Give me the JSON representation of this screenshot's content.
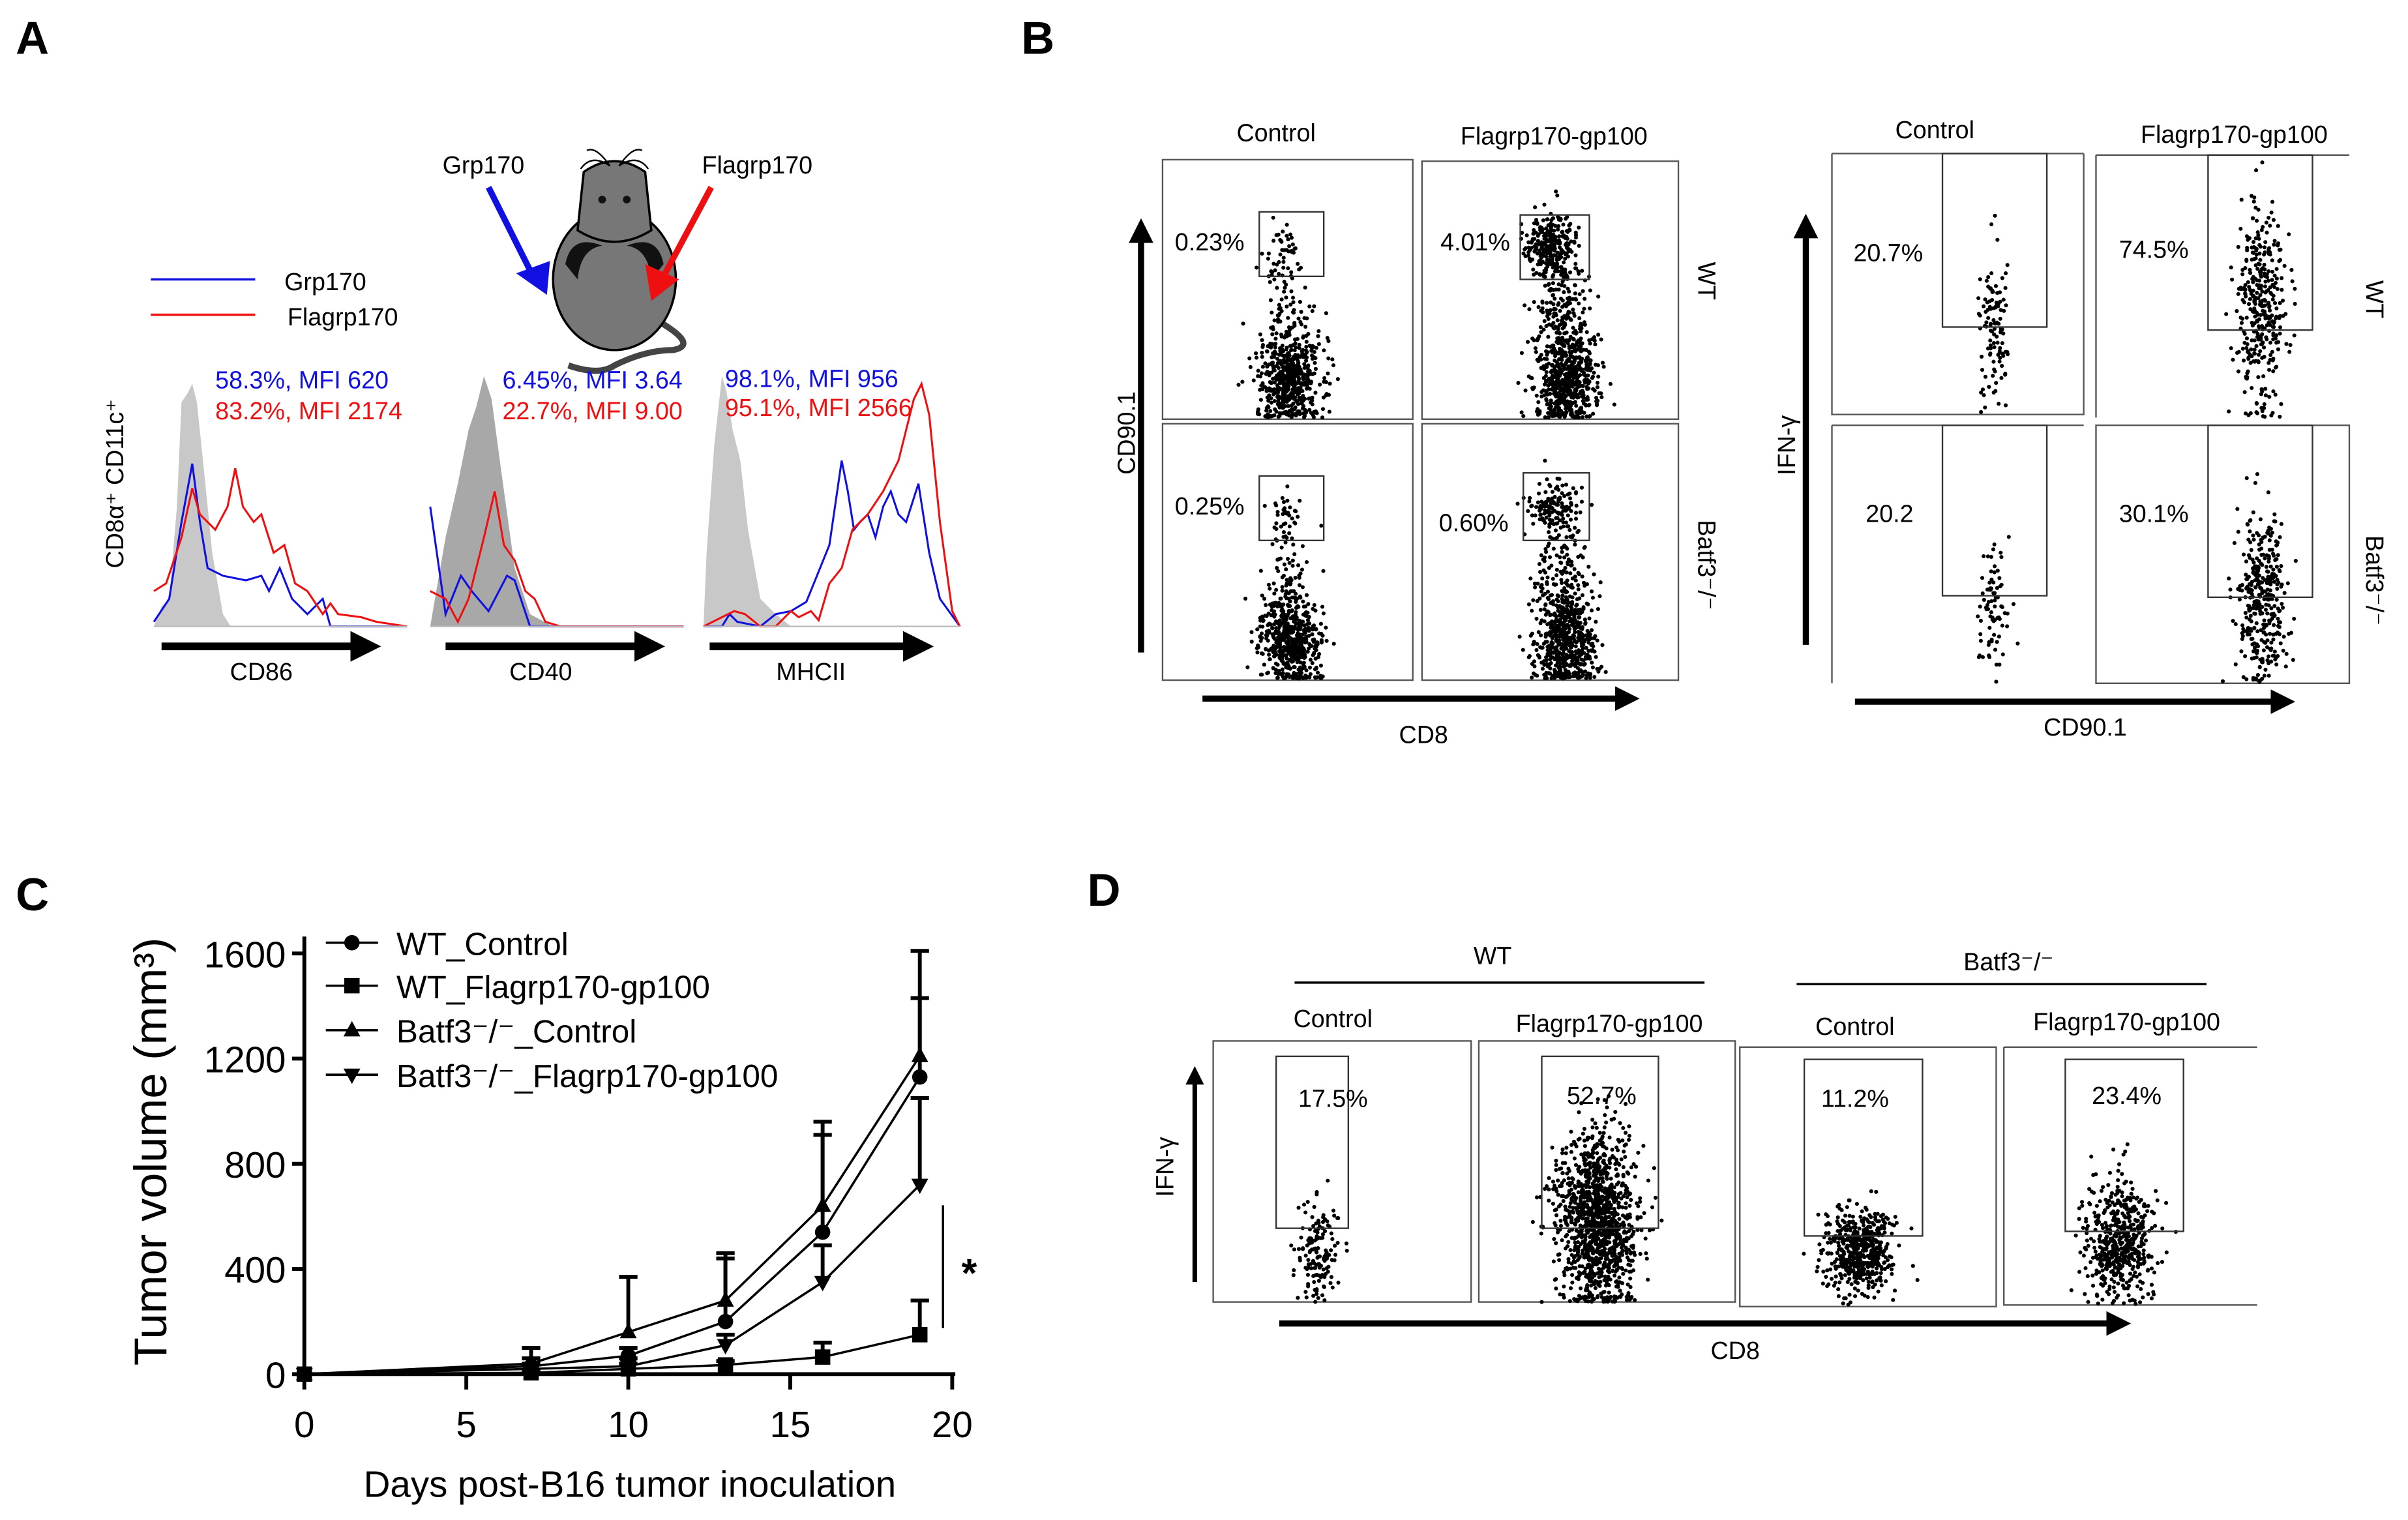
{
  "panel_a": {
    "letter": "A",
    "legend": [
      {
        "label": "Grp170",
        "color": "#1010e0"
      },
      {
        "label": "Flagrp170",
        "color": "#ee1010"
      }
    ],
    "injection_labels": {
      "left": "Grp170",
      "right": "Flagrp170"
    },
    "y_label": "CD8α⁺ CD11c⁺",
    "histograms": [
      {
        "marker": "CD86",
        "blue_stat": "58.3%, MFI 620",
        "red_stat": "83.2%, MFI 2174"
      },
      {
        "marker": "CD40",
        "blue_stat": "6.45%, MFI 3.64",
        "red_stat": "22.7%, MFI 9.00"
      },
      {
        "marker": "MHCII",
        "blue_stat": "98.1%, MFI 956",
        "red_stat": "95.1%, MFI 2566"
      }
    ]
  },
  "panel_b": {
    "letter": "B",
    "left": {
      "columns": [
        "Control",
        "Flagrp170-gp100"
      ],
      "rows": [
        "WT",
        "Batf3⁻/⁻"
      ],
      "gates": [
        "0.23%",
        "4.01%",
        "0.25%",
        "0.60%"
      ],
      "x_label": "CD8",
      "y_label": "CD90.1"
    },
    "right": {
      "columns": [
        "Control",
        "Flagrp170-gp100"
      ],
      "rows": [
        "WT",
        "Batf3⁻/⁻"
      ],
      "gates": [
        "20.7%",
        "74.5%",
        "20.2",
        "30.1%"
      ],
      "x_label": "CD90.1",
      "y_label": "IFN-γ"
    }
  },
  "panel_d": {
    "letter": "D",
    "groups": [
      "WT",
      "Batf3⁻/⁻"
    ],
    "columns": [
      "Control",
      "Flagrp170-gp100",
      "Control",
      "Flagrp170-gp100"
    ],
    "gates": [
      "17.5%",
      "52.7%",
      "11.2%",
      "23.4%"
    ],
    "x_label": "CD8",
    "y_label": "IFN-γ"
  },
  "chart_data": {
    "panel": "C",
    "type": "line",
    "title": "",
    "xlabel": "Days post-B16 tumor inoculation",
    "ylabel": "Tumor volume (mm³)",
    "xlim": [
      0,
      20
    ],
    "ylim": [
      0,
      1600
    ],
    "xticks": [
      "0",
      "5",
      "10",
      "15",
      "20"
    ],
    "yticks": [
      "0",
      "400",
      "800",
      "1200",
      "1600"
    ],
    "legend_position": "top-left",
    "significance": "*",
    "x": [
      0,
      7,
      10,
      13,
      16,
      19
    ],
    "series": [
      {
        "name": "WT_Control",
        "marker": "circle",
        "values": [
          0,
          30,
          70,
          200,
          540,
          1130
        ],
        "error_upper": [
          0,
          60,
          100,
          440,
          910,
          1430
        ]
      },
      {
        "name": "WT_Flagrp170-gp100",
        "marker": "square",
        "values": [
          0,
          5,
          20,
          35,
          65,
          150
        ],
        "error_upper": [
          0,
          15,
          40,
          50,
          120,
          280
        ]
      },
      {
        "name": "Batf3⁻/⁻_Control",
        "marker": "triangle-up",
        "values": [
          0,
          40,
          160,
          280,
          640,
          1210
        ],
        "error_upper": [
          0,
          100,
          370,
          460,
          960,
          1610
        ]
      },
      {
        "name": "Batf3⁻/⁻_Flagrp170-gp100",
        "marker": "triangle-down",
        "values": [
          0,
          20,
          30,
          110,
          350,
          720
        ],
        "error_upper": [
          0,
          40,
          60,
          150,
          490,
          1050
        ]
      }
    ]
  }
}
